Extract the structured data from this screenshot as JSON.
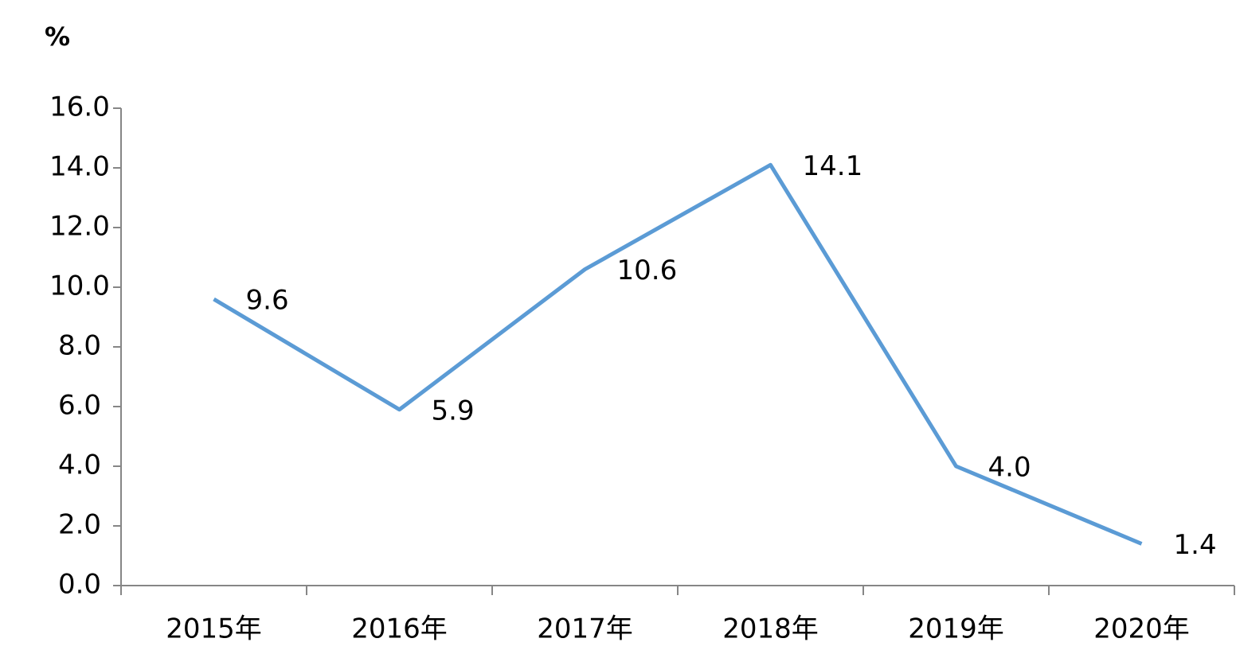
{
  "chart_data": {
    "type": "line",
    "y_label": "%",
    "categories": [
      "2015年",
      "2016年",
      "2017年",
      "2018年",
      "2019年",
      "2020年"
    ],
    "series": [
      {
        "name": null,
        "color": "#5b9bd5",
        "values": [
          9.6,
          5.9,
          10.6,
          14.1,
          4.0,
          1.4
        ],
        "value_labels": [
          "9.6",
          "5.9",
          "10.6",
          "14.1",
          "4.0",
          "1.4"
        ]
      }
    ],
    "ylim": [
      0,
      16
    ],
    "yticks": [
      {
        "value": 0,
        "label": "0.0"
      },
      {
        "value": 2,
        "label": "2.0"
      },
      {
        "value": 4,
        "label": "4.0"
      },
      {
        "value": 6,
        "label": "6.0"
      },
      {
        "value": 8,
        "label": "8.0"
      },
      {
        "value": 10,
        "label": "10.0"
      },
      {
        "value": 12,
        "label": "12.0"
      },
      {
        "value": 14,
        "label": "14.0"
      },
      {
        "value": 16,
        "label": "16.0"
      }
    ],
    "grid": false
  }
}
